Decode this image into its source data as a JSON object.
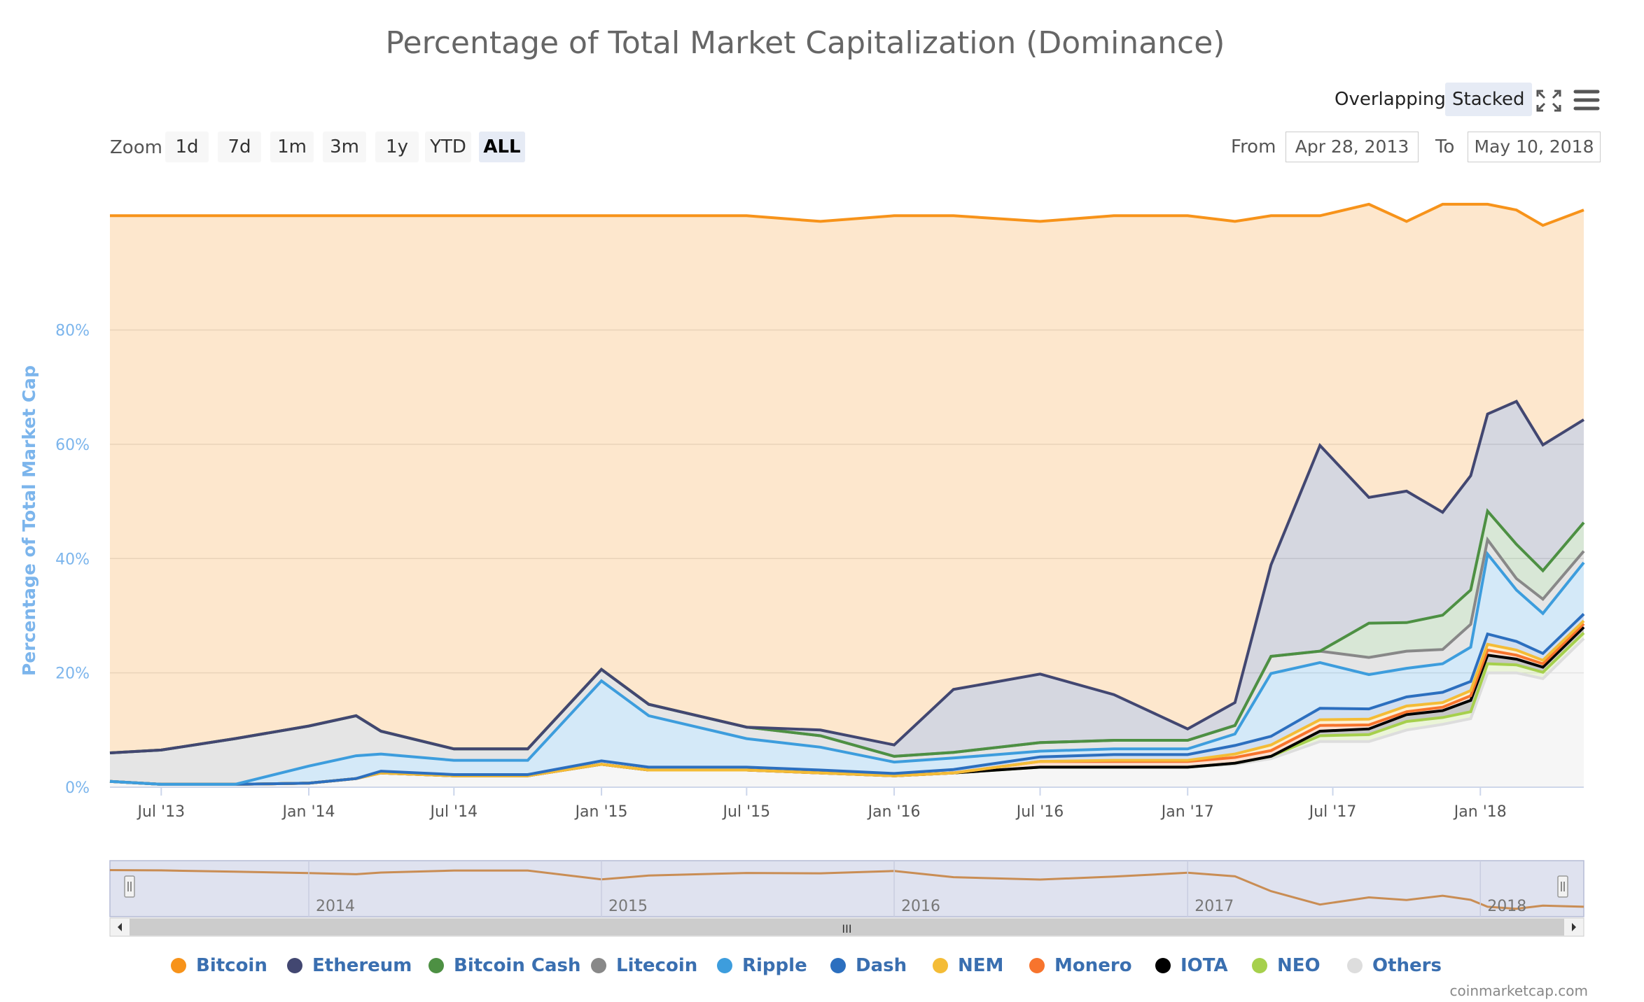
{
  "chart_data": {
    "type": "area",
    "stacking": "percent",
    "title": "Percentage of Total Market Capitalization (Dominance)",
    "ylabel": "Percentage of Total Market Cap",
    "ylim": [
      0,
      100
    ],
    "y_ticks": [
      "0%",
      "20%",
      "40%",
      "60%",
      "80%"
    ],
    "x_ticks": [
      "Jul '13",
      "Jan '14",
      "Jul '14",
      "Jan '15",
      "Jul '15",
      "Jan '16",
      "Jul '16",
      "Jan '17",
      "Jul '17",
      "Jan '18"
    ],
    "x_range": [
      "2013-04-28",
      "2018-05-10"
    ],
    "x": [
      "2013-04-28",
      "2013-07-01",
      "2013-10-01",
      "2014-01-01",
      "2014-03-01",
      "2014-04-01",
      "2014-07-01",
      "2014-10-01",
      "2015-01-01",
      "2015-03-01",
      "2015-07-01",
      "2015-10-01",
      "2016-01-01",
      "2016-03-15",
      "2016-07-01",
      "2016-10-01",
      "2017-01-01",
      "2017-03-01",
      "2017-04-15",
      "2017-06-15",
      "2017-08-15",
      "2017-10-01",
      "2017-11-15",
      "2017-12-20",
      "2018-01-10",
      "2018-02-15",
      "2018-03-20",
      "2018-05-10"
    ],
    "series": [
      {
        "name": "Others",
        "color": "#dddddd",
        "values": [
          1,
          0.5,
          0.5,
          0.7,
          1.5,
          2.5,
          2,
          2,
          4,
          3,
          3,
          2.5,
          2,
          2.5,
          3.5,
          3.5,
          3.5,
          4,
          5,
          8,
          8,
          10,
          11,
          12,
          20,
          20,
          19,
          26
        ]
      },
      {
        "name": "NEO",
        "color": "#a6d04c",
        "values": [
          0,
          0,
          0,
          0,
          0,
          0,
          0,
          0,
          0,
          0,
          0,
          0,
          0,
          0,
          0,
          0,
          0,
          0.2,
          0.4,
          1,
          1.2,
          1.5,
          1.2,
          1.2,
          1.6,
          1.4,
          1.1,
          1
        ]
      },
      {
        "name": "IOTA",
        "color": "#000000",
        "values": [
          0,
          0,
          0,
          0,
          0,
          0,
          0,
          0,
          0,
          0,
          0,
          0,
          0,
          0,
          0,
          0,
          0,
          0,
          0,
          0.8,
          1,
          1.2,
          1.2,
          2,
          1.5,
          1,
          0.9,
          1
        ]
      },
      {
        "name": "Monero",
        "color": "#f7742d",
        "values": [
          0,
          0,
          0,
          0,
          0,
          0,
          0,
          0,
          0,
          0,
          0,
          0,
          0,
          0,
          1,
          1,
          1,
          1,
          1,
          1,
          0.7,
          0.5,
          0.6,
          0.8,
          0.9,
          0.7,
          0.6,
          0.6
        ]
      },
      {
        "name": "NEM",
        "color": "#f4bc36",
        "values": [
          0,
          0,
          0,
          0,
          0,
          0,
          0,
          0,
          0,
          0,
          0,
          0,
          0,
          0,
          0,
          0.2,
          0.2,
          0.6,
          1,
          1,
          1,
          1,
          0.8,
          0.9,
          1,
          0.9,
          0.6,
          0.5
        ]
      },
      {
        "name": "Dash",
        "color": "#2c6fbf",
        "values": [
          0,
          0,
          0,
          0,
          0,
          0.3,
          0.2,
          0.2,
          0.6,
          0.5,
          0.5,
          0.5,
          0.4,
          0.6,
          0.8,
          1,
          1,
          1.5,
          1.5,
          2,
          1.8,
          1.6,
          1.8,
          1.6,
          1.8,
          1.5,
          1.2,
          1.2
        ]
      },
      {
        "name": "Ripple",
        "color": "#3d9ddd",
        "values": [
          0,
          0,
          0,
          3,
          4,
          3,
          2.5,
          2.5,
          14,
          9,
          5,
          4,
          2,
          2,
          1,
          1,
          1,
          2,
          11,
          8,
          6,
          5,
          5,
          6,
          14,
          9,
          7,
          9
        ]
      },
      {
        "name": "Litecoin",
        "color": "#888888",
        "values": [
          5,
          6,
          8,
          7,
          7,
          4,
          2,
          2,
          2,
          2,
          2,
          2,
          1,
          1,
          1.5,
          1.5,
          1.5,
          1.5,
          3,
          2,
          3,
          3,
          2.5,
          4,
          2.5,
          2,
          2.5,
          2
        ]
      },
      {
        "name": "Bitcoin Cash",
        "color": "#4d9043",
        "values": [
          0,
          0,
          0,
          0,
          0,
          0,
          0,
          0,
          0,
          0,
          0,
          0,
          0,
          0,
          0,
          0,
          0,
          0,
          0,
          0,
          6,
          5,
          6,
          6,
          5,
          6,
          5,
          5
        ]
      },
      {
        "name": "Ethereum",
        "color": "#424771",
        "values": [
          0,
          0,
          0,
          0,
          0,
          0,
          0,
          0,
          0,
          0,
          0,
          1,
          2,
          11,
          12,
          8,
          2,
          4,
          16,
          36,
          22,
          23,
          18,
          20,
          17,
          25,
          22,
          18
        ]
      },
      {
        "name": "Bitcoin",
        "color": "#f7931a",
        "values": [
          94,
          93.5,
          91.5,
          89.3,
          87.5,
          90.2,
          93.3,
          93.3,
          79.4,
          85.5,
          89.5,
          89,
          92.6,
          82.9,
          79.2,
          83.8,
          89.8,
          84.2,
          61.1,
          40.2,
          51.3,
          47.2,
          53.9,
          47.5,
          36.7,
          33.5,
          38.4,
          36.7
        ]
      }
    ],
    "legend_order": [
      "Bitcoin",
      "Ethereum",
      "Bitcoin Cash",
      "Litecoin",
      "Ripple",
      "Dash",
      "NEM",
      "Monero",
      "IOTA",
      "NEO",
      "Others"
    ],
    "legend_position": "bottom",
    "grid": true,
    "navigator": {
      "labels": [
        "2014",
        "2015",
        "2016",
        "2017",
        "2018"
      ],
      "series": "Bitcoin"
    }
  },
  "toolbar": {
    "zoom_label": "Zoom",
    "zoom_buttons": [
      "1d",
      "7d",
      "1m",
      "3m",
      "1y",
      "YTD",
      "ALL"
    ],
    "active_zoom": "ALL",
    "modes": [
      "Overlapping",
      "Stacked"
    ],
    "active_mode": "Stacked",
    "from_label": "From",
    "from_value": "Apr 28, 2013",
    "to_label": "To",
    "to_value": "May 10, 2018"
  },
  "scrollbar": {
    "grip": "III"
  },
  "credit": "coinmarketcap.com"
}
